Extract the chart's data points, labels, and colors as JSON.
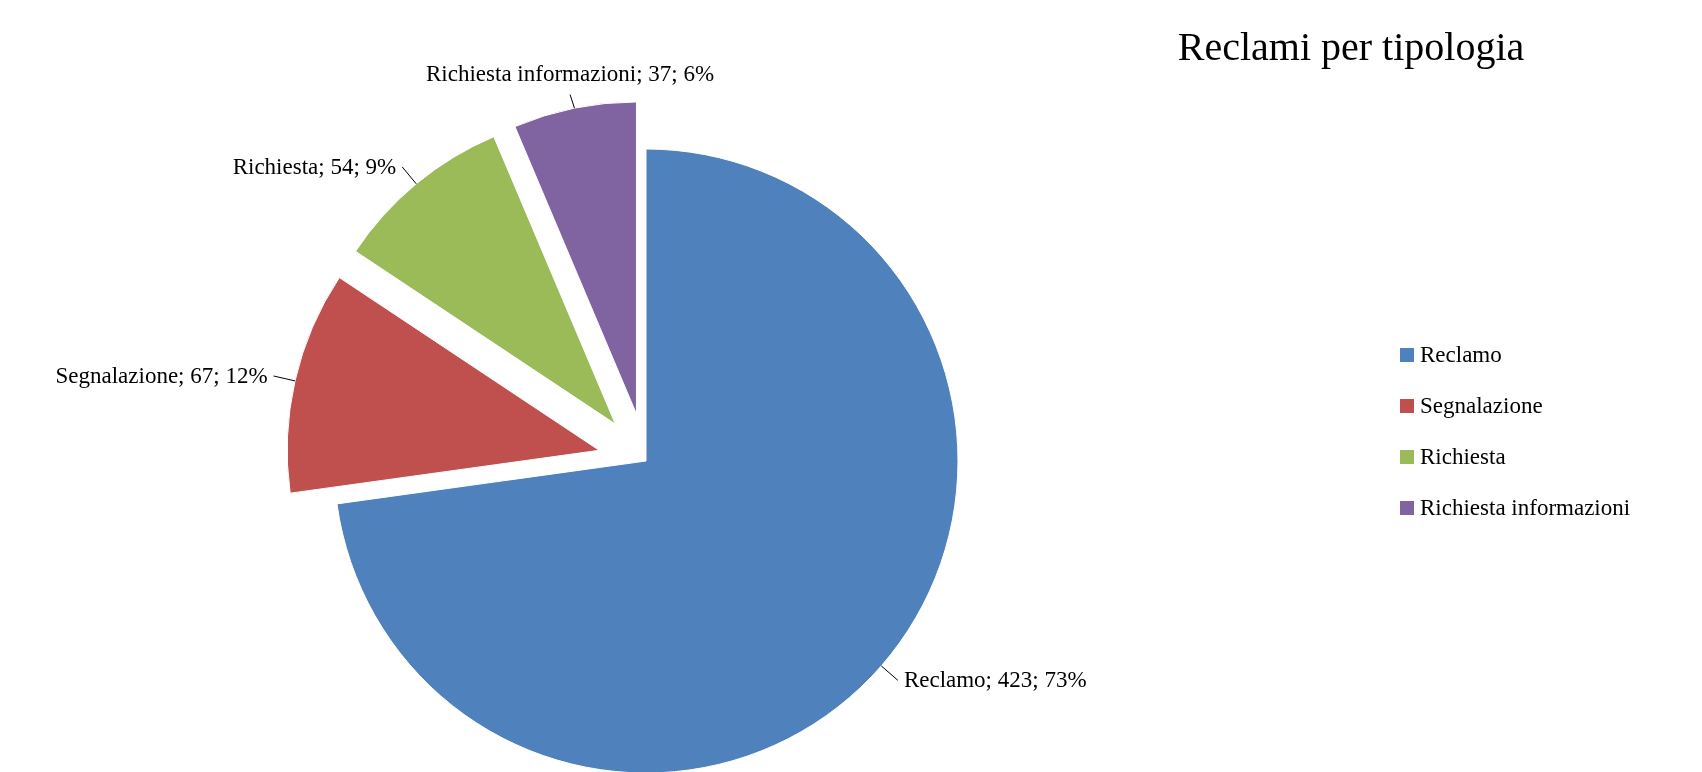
{
  "chart_data": {
    "type": "pie",
    "title": "Reclami per tipologia",
    "categories": [
      "Reclamo",
      "Segnalazione",
      "Richiesta",
      "Richiesta informazioni"
    ],
    "values": [
      423,
      67,
      54,
      37
    ],
    "colors": [
      "#4f81bd",
      "#c0504d",
      "#9bbb59",
      "#8064a2"
    ],
    "value_labels": [
      "Reclamo; 423; 73%",
      "Segnalazione; 67; 12%",
      "Richiesta; 54; 9%",
      "Richiesta informazioni; 37; 6%"
    ],
    "legend": "right"
  }
}
